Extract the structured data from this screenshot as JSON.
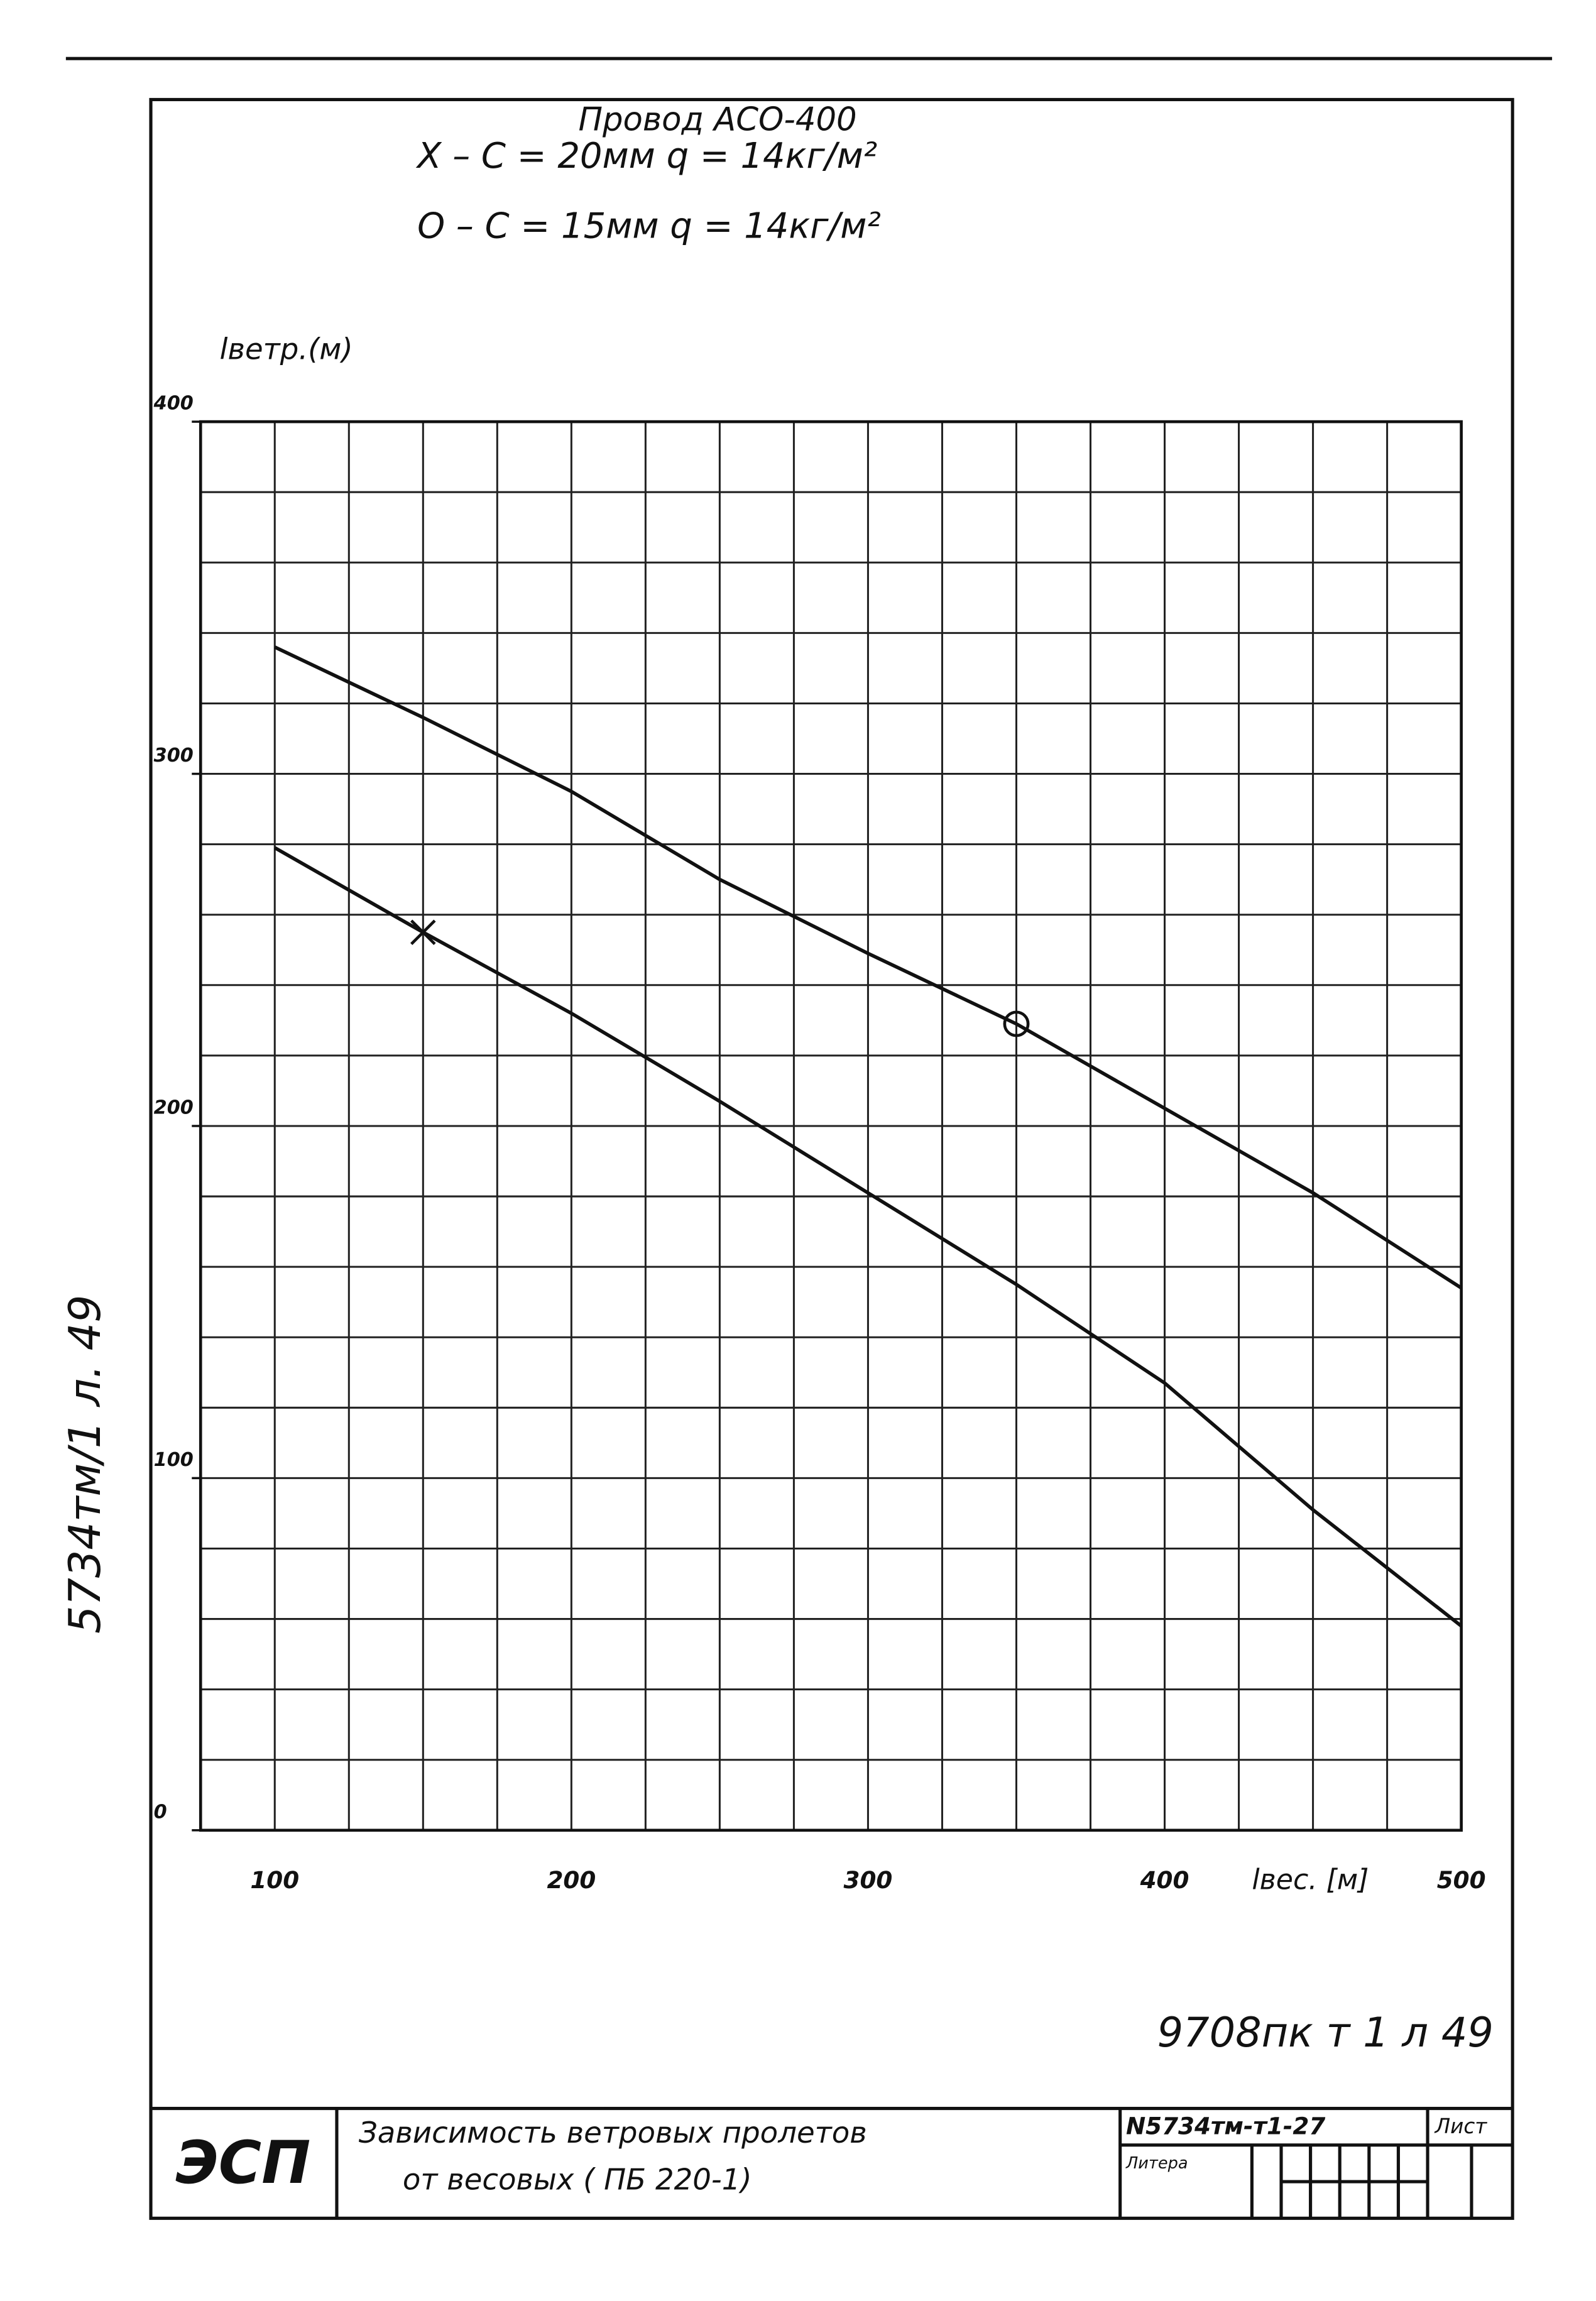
{
  "chart_data": {
    "type": "line",
    "title": "Провод АСО-400",
    "y_label": "lветр.(м)",
    "x_label": "lвес. [м]",
    "x": [
      100,
      150,
      200,
      250,
      300,
      350,
      400,
      450,
      500
    ],
    "series": [
      {
        "name": "Х – С = 20мм   q = 14кг/м²",
        "color": "#111111",
        "marker": "x",
        "marker_x": [
          150
        ],
        "values": [
          279,
          255,
          232,
          207,
          181,
          155,
          127,
          91,
          58
        ]
      },
      {
        "name": "О – С = 15мм   q = 14кг/м²",
        "color": "#111111",
        "marker": "o",
        "marker_x": [
          350
        ],
        "values": [
          336,
          316,
          295,
          270,
          249,
          229,
          205,
          181,
          154
        ]
      }
    ],
    "xlim": [
      75,
      500
    ],
    "ylim": [
      0,
      400
    ],
    "xticks": [
      100,
      200,
      300,
      400,
      500
    ],
    "yticks": [
      0,
      100,
      200,
      300,
      400
    ],
    "x_grid": [
      75,
      100,
      125,
      150,
      175,
      200,
      225,
      250,
      275,
      300,
      325,
      350,
      375,
      400,
      425,
      450,
      475,
      500
    ],
    "y_grid": [
      0,
      20,
      40,
      60,
      80,
      100,
      120,
      140,
      160,
      180,
      200,
      220,
      240,
      260,
      280,
      300,
      320,
      340,
      360,
      380,
      400
    ],
    "grid": true
  },
  "side_note": "5734тм/1 л. 49",
  "stamp": "9708пк т 1 л 49",
  "title_block": {
    "org": "ЭСП",
    "caption_1": "Зависимость ветровых пролетов",
    "caption_2": "от весовых ( ПБ 220-1)",
    "code": "N5734тм-т1-27",
    "sheet": "Лист",
    "letter": "Литера"
  }
}
